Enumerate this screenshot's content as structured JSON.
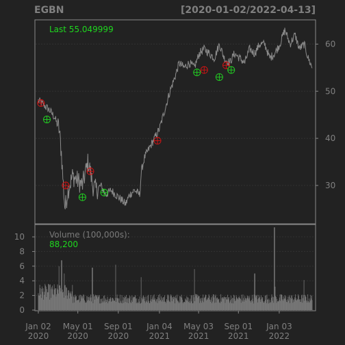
{
  "chart_data": [
    {
      "type": "line",
      "panel": "price",
      "title": "EGBN",
      "date_range_label": "[2020-01-02/2022-04-13]",
      "last_label": "Last 55.049999",
      "ylim": [
        22,
        65
      ],
      "y_ticks": [
        30,
        40,
        50,
        60
      ],
      "x_range": [
        "2020-01-02",
        "2022-04-13"
      ],
      "x_ticks": [
        {
          "date": "2020-01-02",
          "line1": "Jan 02",
          "line2": "2020"
        },
        {
          "date": "2020-05-01",
          "line1": "May 01",
          "line2": "2020"
        },
        {
          "date": "2020-09-01",
          "line1": "Sep 01",
          "line2": "2020"
        },
        {
          "date": "2021-01-04",
          "line1": "Jan 04",
          "line2": "2021"
        },
        {
          "date": "2021-05-03",
          "line1": "May 03",
          "line2": "2021"
        },
        {
          "date": "2021-09-01",
          "line1": "Sep 01",
          "line2": "2021"
        },
        {
          "date": "2022-01-03",
          "line1": "Jan 03",
          "line2": "2022"
        }
      ],
      "price_series": {
        "x": [
          "2020-01-02",
          "2020-01-20",
          "2020-02-05",
          "2020-02-20",
          "2020-03-05",
          "2020-03-12",
          "2020-03-18",
          "2020-03-23",
          "2020-04-01",
          "2020-04-15",
          "2020-05-01",
          "2020-05-15",
          "2020-06-01",
          "2020-06-08",
          "2020-06-15",
          "2020-06-26",
          "2020-07-10",
          "2020-07-25",
          "2020-08-10",
          "2020-08-25",
          "2020-09-10",
          "2020-09-23",
          "2020-10-05",
          "2020-10-20",
          "2020-11-05",
          "2020-11-10",
          "2020-11-20",
          "2020-12-05",
          "2020-12-20",
          "2021-01-04",
          "2021-01-20",
          "2021-02-05",
          "2021-02-20",
          "2021-03-05",
          "2021-03-20",
          "2021-04-05",
          "2021-04-20",
          "2021-05-05",
          "2021-05-20",
          "2021-06-05",
          "2021-06-20",
          "2021-07-05",
          "2021-07-20",
          "2021-08-05",
          "2021-08-20",
          "2021-09-05",
          "2021-09-20",
          "2021-10-05",
          "2021-10-20",
          "2021-11-05",
          "2021-11-20",
          "2021-12-05",
          "2021-12-20",
          "2022-01-05",
          "2022-01-20",
          "2022-02-05",
          "2022-02-20",
          "2022-03-05",
          "2022-03-20",
          "2022-04-01",
          "2022-04-13"
        ],
        "y": [
          48,
          47,
          46,
          44.5,
          42,
          37,
          30,
          25,
          29,
          32,
          31,
          30,
          35,
          33,
          30,
          29,
          30,
          28,
          29,
          28,
          27,
          26,
          28,
          29,
          28,
          33,
          36,
          38,
          40,
          42,
          46,
          50,
          53,
          56,
          55,
          56,
          55,
          58,
          59,
          58,
          57,
          60,
          57,
          56,
          58,
          57,
          56,
          59,
          58,
          60,
          60,
          57,
          58,
          60,
          63,
          60,
          62,
          59,
          60,
          57,
          55
        ]
      },
      "signals": {
        "sell": [
          {
            "x": "2020-01-10",
            "y": 47.5
          },
          {
            "x": "2020-03-25",
            "y": 30
          },
          {
            "x": "2020-06-08",
            "y": 33
          },
          {
            "x": "2020-12-29",
            "y": 39.5
          },
          {
            "x": "2021-05-20",
            "y": 54.5
          },
          {
            "x": "2021-07-26",
            "y": 55.5
          }
        ],
        "buy": [
          {
            "x": "2020-01-28",
            "y": 44
          },
          {
            "x": "2020-05-15",
            "y": 27.5
          },
          {
            "x": "2020-07-20",
            "y": 28.5
          },
          {
            "x": "2021-04-28",
            "y": 54
          },
          {
            "x": "2021-07-05",
            "y": 53
          },
          {
            "x": "2021-08-10",
            "y": 54.5
          }
        ]
      }
    },
    {
      "type": "bar",
      "panel": "volume",
      "label": "Volume (100,000s):",
      "last_value_label": "88,200",
      "ylim": [
        0,
        11.5
      ],
      "y_ticks": [
        0,
        2,
        4,
        6,
        8,
        10
      ],
      "spikes": [
        {
          "x": "2020-03-05",
          "value": 6
        },
        {
          "x": "2020-03-12",
          "value": 6.8
        },
        {
          "x": "2020-03-20",
          "value": 5
        },
        {
          "x": "2020-06-15",
          "value": 5.8
        },
        {
          "x": "2020-08-25",
          "value": 6.2
        },
        {
          "x": "2020-11-10",
          "value": 4.5
        },
        {
          "x": "2021-04-20",
          "value": 5.6
        },
        {
          "x": "2021-10-20",
          "value": 5
        },
        {
          "x": "2021-12-20",
          "value": 11.3
        },
        {
          "x": "2021-12-22",
          "value": 3.2
        },
        {
          "x": "2022-03-20",
          "value": 4.1
        }
      ]
    }
  ],
  "colors": {
    "background": "#222222",
    "panel_border": "#8a8a8a",
    "grid": "#333333",
    "line": "#8b8b8b",
    "header_text": "#808080",
    "last_text": "#1ed81e",
    "sell": "#cc1414",
    "buy": "#22cc22",
    "volume_bar": "#7a7a7a"
  }
}
